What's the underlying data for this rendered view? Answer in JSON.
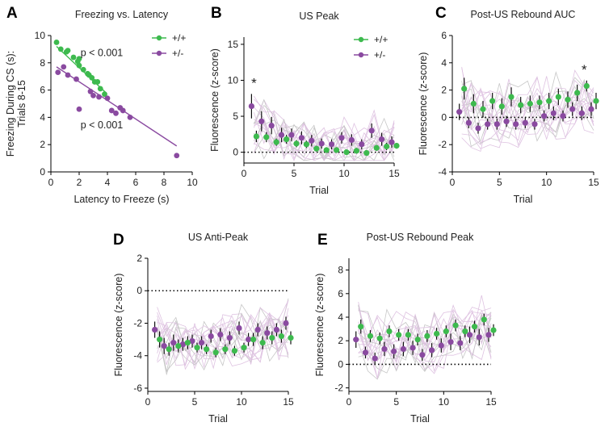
{
  "colors": {
    "wt": "#3dba4e",
    "het": "#8a4aa0",
    "trace_het": "#d9b8dc",
    "trace_wt": "#bdbdbd",
    "axis": "#000000"
  },
  "chart_data": [
    {
      "panel": "A",
      "type": "scatter",
      "title": "Freezing vs. Latency",
      "xlabel": "Latency to Freeze (s)",
      "ylabel_lines": [
        "Freezing During CS (s):",
        "Trials 8-15"
      ],
      "xlim": [
        0,
        10
      ],
      "ylim": [
        0,
        10
      ],
      "xticks": [
        0,
        2,
        4,
        6,
        8,
        10
      ],
      "yticks": [
        0,
        2,
        4,
        6,
        8,
        10
      ],
      "legend": {
        "placement": "top-right",
        "entries": [
          "+/+",
          "+/-"
        ]
      },
      "annotations": [
        "p < 0.001",
        "p < 0.001"
      ],
      "series": [
        {
          "name": "+/+",
          "x": [
            0.4,
            0.7,
            1.1,
            1.6,
            1.9,
            2.0,
            2.3,
            2.6,
            2.9,
            3.1,
            3.3,
            3.5,
            3.8,
            1.2,
            2.0,
            2.7
          ],
          "y": [
            9.5,
            9.0,
            8.8,
            8.4,
            8.1,
            8.3,
            7.5,
            7.2,
            6.9,
            6.6,
            6.6,
            6.1,
            5.7,
            8.9,
            7.8,
            7.1
          ],
          "fit": {
            "x0": 0.4,
            "y0": 9.2,
            "x1": 3.9,
            "y1": 5.8
          }
        },
        {
          "name": "+/-",
          "x": [
            0.5,
            0.9,
            1.2,
            1.8,
            2.0,
            2.8,
            3.0,
            3.4,
            4.0,
            4.3,
            4.6,
            4.9,
            5.1,
            5.6,
            8.9
          ],
          "y": [
            7.3,
            7.7,
            7.1,
            6.8,
            4.6,
            5.9,
            5.6,
            5.5,
            5.4,
            4.5,
            4.3,
            4.7,
            4.5,
            4.0,
            1.2
          ],
          "fit": {
            "x0": 0.4,
            "y0": 7.7,
            "x1": 8.9,
            "y1": 1.9
          }
        }
      ]
    },
    {
      "panel": "B",
      "type": "line",
      "title": "US Peak",
      "xlabel": "Trial",
      "ylabel": "Fluorescence (z-score)",
      "xlim": [
        0,
        15
      ],
      "ylim": [
        -1.5,
        16
      ],
      "xticks": [
        0,
        5,
        10,
        15
      ],
      "yticks": [
        0,
        5,
        10,
        15
      ],
      "zero_line": true,
      "legend": {
        "placement": "top-right",
        "entries": [
          "+/+",
          "+/-"
        ]
      },
      "annotations": [
        {
          "text": "*",
          "trial": 1
        }
      ],
      "series": [
        {
          "name": "+/+",
          "trials": [
            1,
            2,
            3,
            4,
            5,
            6,
            7,
            8,
            9,
            10,
            11,
            12,
            13,
            14,
            15
          ],
          "mean": [
            2.2,
            2.1,
            1.4,
            1.8,
            1.2,
            1.1,
            0.5,
            0.3,
            0.3,
            0.0,
            0.2,
            -0.1,
            0.6,
            0.8,
            0.9
          ],
          "sem": [
            0.8,
            0.7,
            0.5,
            0.6,
            0.5,
            0.5,
            0.4,
            0.4,
            0.4,
            0.3,
            0.4,
            0.3,
            0.4,
            0.5,
            0.4
          ]
        },
        {
          "name": "+/-",
          "trials": [
            1,
            2,
            3,
            4,
            5,
            6,
            7,
            8,
            9,
            10,
            11,
            12,
            13,
            14,
            15
          ],
          "mean": [
            6.4,
            4.3,
            3.7,
            2.4,
            2.4,
            2.0,
            1.6,
            1.2,
            1.1,
            2.0,
            1.7,
            1.1,
            3.0,
            1.8,
            1.4
          ],
          "sem": [
            1.7,
            1.4,
            1.2,
            1.0,
            0.9,
            0.9,
            0.8,
            0.7,
            0.7,
            0.8,
            0.8,
            0.7,
            1.0,
            0.9,
            0.8
          ]
        }
      ]
    },
    {
      "panel": "C",
      "type": "line",
      "title": "Post-US Rebound AUC",
      "xlabel": "Trial",
      "ylabel": "Fluorescence (z-score)",
      "xlim": [
        0,
        15
      ],
      "ylim": [
        -4,
        6
      ],
      "xticks": [
        0,
        5,
        10,
        15
      ],
      "yticks": [
        -4,
        -2,
        0,
        2,
        4,
        6
      ],
      "zero_line": true,
      "annotations": [
        {
          "text": "*",
          "trial": 14
        }
      ],
      "series": [
        {
          "name": "+/+",
          "trials": [
            1,
            2,
            3,
            4,
            5,
            6,
            7,
            8,
            9,
            10,
            11,
            12,
            13,
            14,
            15
          ],
          "mean": [
            2.1,
            1.0,
            0.6,
            1.2,
            0.8,
            1.5,
            0.9,
            1.0,
            1.1,
            1.2,
            1.5,
            1.3,
            1.8,
            2.3,
            1.2
          ],
          "sem": [
            0.8,
            0.7,
            0.6,
            0.6,
            0.6,
            0.7,
            0.6,
            0.6,
            0.5,
            0.6,
            0.6,
            0.6,
            0.6,
            0.4,
            0.6
          ]
        },
        {
          "name": "+/-",
          "trials": [
            1,
            2,
            3,
            4,
            5,
            6,
            7,
            8,
            9,
            10,
            11,
            12,
            13,
            14,
            15
          ],
          "mean": [
            0.4,
            -0.4,
            -0.8,
            -0.5,
            -0.5,
            -0.3,
            -0.5,
            -0.4,
            -0.5,
            0.1,
            0.3,
            0.1,
            0.6,
            0.3,
            0.6
          ],
          "sem": [
            0.6,
            0.4,
            0.4,
            0.4,
            0.4,
            0.4,
            0.4,
            0.4,
            0.4,
            0.4,
            0.5,
            0.4,
            0.5,
            0.5,
            0.5
          ]
        }
      ]
    },
    {
      "panel": "D",
      "type": "line",
      "title": "US Anti-Peak",
      "xlabel": "Trial",
      "ylabel": "Fluorescence (z-score)",
      "xlim": [
        0,
        15
      ],
      "ylim": [
        -6.2,
        2
      ],
      "xticks": [
        0,
        5,
        10,
        15
      ],
      "yticks": [
        -6,
        -4,
        -2,
        0,
        2
      ],
      "zero_line": true,
      "series": [
        {
          "name": "+/+",
          "trials": [
            1,
            2,
            3,
            4,
            5,
            6,
            7,
            8,
            9,
            10,
            11,
            12,
            13,
            14,
            15
          ],
          "mean": [
            -3.0,
            -3.6,
            -3.4,
            -3.2,
            -3.5,
            -3.6,
            -3.8,
            -3.6,
            -3.7,
            -3.5,
            -3.0,
            -3.2,
            -2.9,
            -2.8,
            -2.9
          ],
          "sem": [
            0.5,
            0.4,
            0.4,
            0.4,
            0.3,
            0.3,
            0.3,
            0.3,
            0.3,
            0.3,
            0.4,
            0.4,
            0.4,
            0.4,
            0.4
          ]
        },
        {
          "name": "+/-",
          "trials": [
            1,
            2,
            3,
            4,
            5,
            6,
            7,
            8,
            9,
            10,
            11,
            12,
            13,
            14,
            15
          ],
          "mean": [
            -2.4,
            -3.4,
            -3.2,
            -3.3,
            -3.1,
            -3.2,
            -2.8,
            -2.7,
            -2.9,
            -2.3,
            -3.0,
            -2.4,
            -2.6,
            -2.4,
            -2.0
          ],
          "sem": [
            0.5,
            0.5,
            0.5,
            0.4,
            0.4,
            0.4,
            0.4,
            0.4,
            0.4,
            0.4,
            0.4,
            0.4,
            0.4,
            0.4,
            0.4
          ]
        }
      ]
    },
    {
      "panel": "E",
      "type": "line",
      "title": "Post-US Rebound Peak",
      "xlabel": "Trial",
      "ylabel": "Fluorescence (z-score)",
      "xlim": [
        0,
        15
      ],
      "ylim": [
        -2.3,
        9
      ],
      "xticks": [
        0,
        5,
        10,
        15
      ],
      "yticks": [
        -2,
        0,
        2,
        4,
        6,
        8
      ],
      "zero_line": true,
      "series": [
        {
          "name": "+/+",
          "trials": [
            1,
            2,
            3,
            4,
            5,
            6,
            7,
            8,
            9,
            10,
            11,
            12,
            13,
            14,
            15
          ],
          "mean": [
            3.2,
            2.4,
            2.2,
            2.8,
            2.5,
            2.5,
            2.1,
            2.4,
            2.6,
            2.8,
            3.3,
            2.8,
            3.2,
            3.8,
            2.9
          ],
          "sem": [
            0.6,
            0.5,
            0.5,
            0.5,
            0.5,
            0.5,
            0.5,
            0.5,
            0.5,
            0.5,
            0.5,
            0.5,
            0.5,
            0.5,
            0.5
          ]
        },
        {
          "name": "+/-",
          "trials": [
            1,
            2,
            3,
            4,
            5,
            6,
            7,
            8,
            9,
            10,
            11,
            12,
            13,
            14,
            15
          ],
          "mean": [
            2.1,
            1.0,
            0.5,
            1.3,
            1.1,
            1.3,
            1.4,
            0.8,
            1.2,
            1.6,
            1.9,
            1.8,
            2.5,
            2.3,
            2.5
          ],
          "sem": [
            0.7,
            0.5,
            0.5,
            0.6,
            0.6,
            0.6,
            0.6,
            0.5,
            0.6,
            0.6,
            0.7,
            0.6,
            0.7,
            0.7,
            0.6
          ]
        }
      ]
    }
  ]
}
